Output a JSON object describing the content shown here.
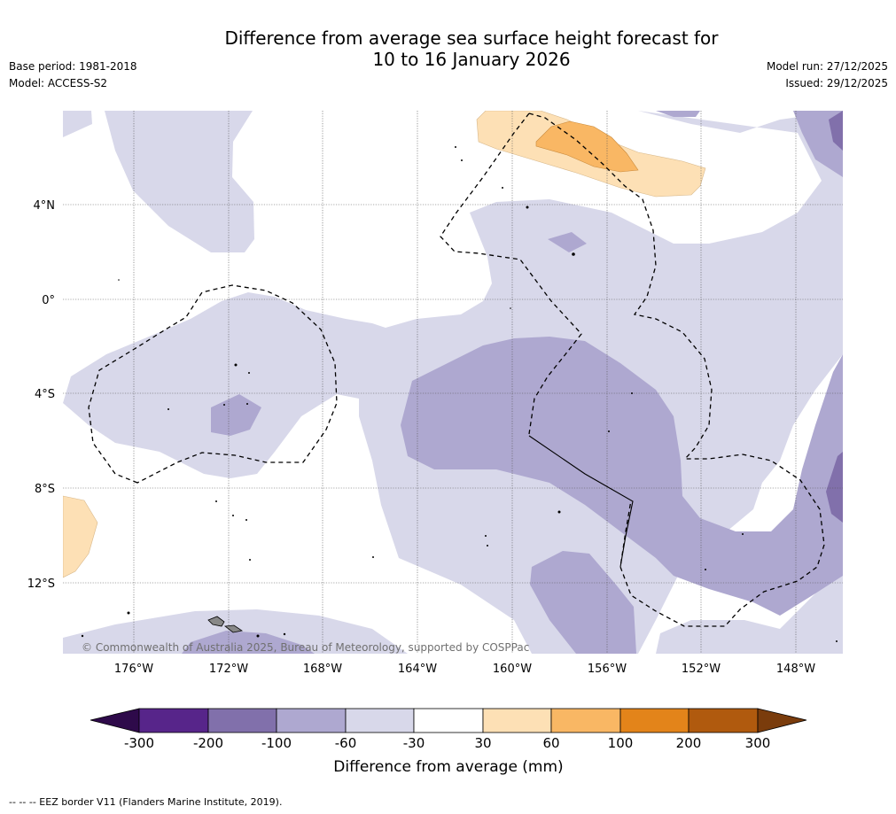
{
  "header": {
    "title_line1": "Difference from average sea surface height forecast for",
    "title_line2": "10 to 16 January 2026",
    "base_period": "Base period: 1981-2018",
    "model": "Model: ACCESS-S2",
    "model_run": "Model run: 27/12/2025",
    "issued": "Issued: 29/12/2025"
  },
  "map": {
    "lat_labels": [
      "4°N",
      "0°",
      "4°S",
      "8°S",
      "12°S"
    ],
    "lon_labels": [
      "176°W",
      "172°W",
      "168°W",
      "164°W",
      "160°W",
      "156°W",
      "152°W",
      "148°W"
    ],
    "copyright": "© Commonwealth of Australia 2025, Bureau of Meteorology, supported by COSPPac"
  },
  "colorbar": {
    "label": "Difference from average (mm)",
    "ticks": [
      "-300",
      "-200",
      "-100",
      "-60",
      "-30",
      "30",
      "60",
      "100",
      "200",
      "300"
    ],
    "colors": [
      "#57258a",
      "#8170ab",
      "#aea8d0",
      "#d8d8ea",
      "#ffffff",
      "#fde0b5",
      "#f9b764",
      "#e3841a",
      "#b05a0e"
    ],
    "under_color": "#2e0a4a",
    "over_color": "#7a3c0c"
  },
  "footer": {
    "footnote": "--  --  -- EEZ border V11 (Flanders Marine Institute, 2019)."
  }
}
